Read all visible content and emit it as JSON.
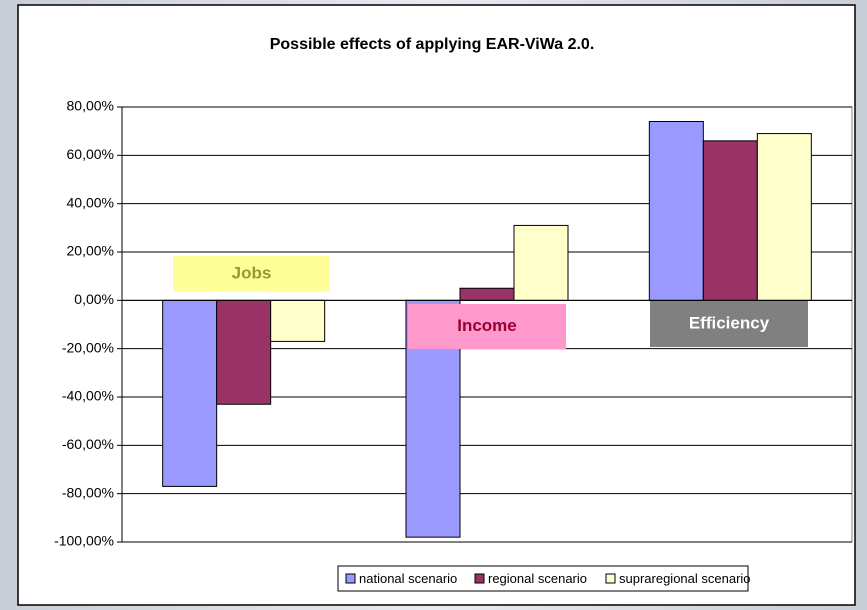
{
  "chart_data": {
    "type": "bar",
    "title": "Possible effects of applying EAR-ViWa 2.0.",
    "categories": [
      "Jobs",
      "Income",
      "Efficiency"
    ],
    "category_box_colors": [
      "#ffff99",
      "#ff99cc",
      "#808080"
    ],
    "category_text_colors": [
      "#999933",
      "#990033",
      "#ffffff"
    ],
    "series": [
      {
        "name": "national scenario",
        "color": "#9999ff",
        "values": [
          -77,
          -98,
          74
        ]
      },
      {
        "name": "regional scenario",
        "color": "#993366",
        "values": [
          -43,
          5,
          66
        ]
      },
      {
        "name": "supraregional scenario",
        "color": "#ffffcc",
        "values": [
          -17,
          31,
          69
        ]
      }
    ],
    "ylim": [
      -100,
      80
    ],
    "yticks": [
      {
        "value": -100,
        "label": "-100,00%"
      },
      {
        "value": -80,
        "label": "-80,00%"
      },
      {
        "value": -60,
        "label": "-60,00%"
      },
      {
        "value": -40,
        "label": "-40,00%"
      },
      {
        "value": -20,
        "label": "-20,00%"
      },
      {
        "value": 0,
        "label": "0,00%"
      },
      {
        "value": 20,
        "label": "20,00%"
      },
      {
        "value": 40,
        "label": "40,00%"
      },
      {
        "value": 60,
        "label": "60,00%"
      },
      {
        "value": 80,
        "label": "80,00%"
      }
    ],
    "grid": true,
    "legend": "bottom"
  }
}
